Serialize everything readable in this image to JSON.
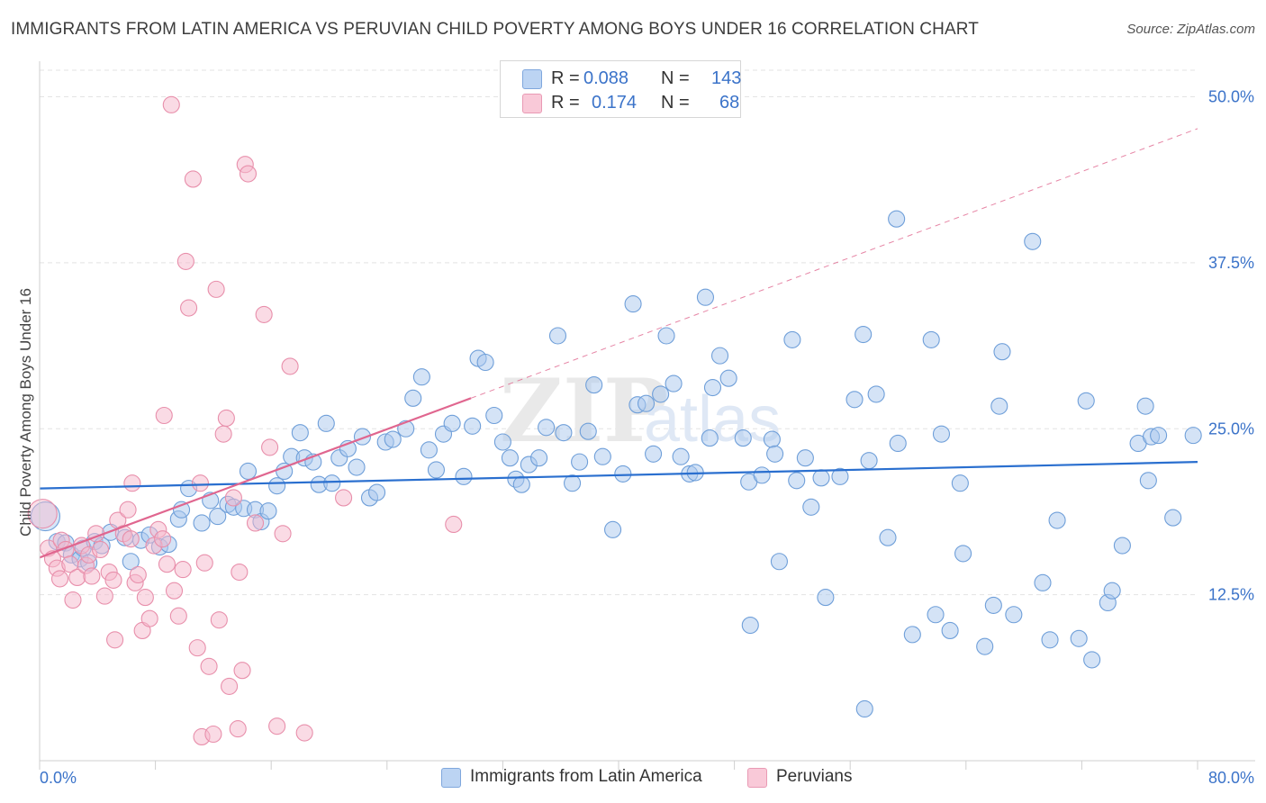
{
  "title": "IMMIGRANTS FROM LATIN AMERICA VS PERUVIAN CHILD POVERTY AMONG BOYS UNDER 16 CORRELATION CHART",
  "source": {
    "prefix": "Source: ",
    "name": "ZipAtlas.com"
  },
  "watermark": {
    "zip": "ZIP",
    "atlas": "atlas"
  },
  "colors": {
    "blue_fill": "#a9c8ee",
    "blue_stroke": "#6f9fd9",
    "blue_line": "#2a6fcf",
    "pink_fill": "#f6b8cc",
    "pink_stroke": "#e88fab",
    "pink_line": "#e0668f",
    "grid": "#e3e3e3",
    "axis_text": "#3b73c9"
  },
  "legend": {
    "rows": [
      {
        "r_label": "R =",
        "r_value": "0.088",
        "n_label": "N =",
        "n_value": "143"
      },
      {
        "r_label": "R =",
        "r_value": "0.174",
        "n_label": "N =",
        "n_value": "68"
      }
    ]
  },
  "chart_data": {
    "type": "scatter",
    "title": "IMMIGRANTS FROM LATIN AMERICA VS PERUVIAN CHILD POVERTY AMONG BOYS UNDER 16 CORRELATION CHART",
    "ylabel": "Child Poverty Among Boys Under 16",
    "xlabel": "",
    "xlim": [
      0,
      80
    ],
    "ylim": [
      0,
      52
    ],
    "x_tick_labels": [
      "0.0%",
      "80.0%"
    ],
    "y_ticks": [
      12.5,
      25.0,
      37.5,
      50.0
    ],
    "y_tick_labels": [
      "12.5%",
      "25.0%",
      "37.5%",
      "50.0%"
    ],
    "grid": true,
    "series": [
      {
        "name": "Immigrants from Latin America",
        "color": "blue",
        "trend": {
          "x": [
            0,
            80
          ],
          "y": [
            20.5,
            22.5
          ],
          "dashed": false
        },
        "points": [
          [
            0.4,
            18.4
          ],
          [
            1.2,
            16.5
          ],
          [
            1.8,
            16.4
          ],
          [
            2.2,
            15.5
          ],
          [
            2.8,
            15.2
          ],
          [
            3.0,
            16.0
          ],
          [
            3.4,
            14.9
          ],
          [
            3.8,
            16.5
          ],
          [
            4.3,
            16.2
          ],
          [
            4.9,
            17.2
          ],
          [
            5.9,
            16.8
          ],
          [
            6.3,
            15.0
          ],
          [
            7.0,
            16.6
          ],
          [
            7.6,
            17.0
          ],
          [
            8.3,
            16.1
          ],
          [
            8.9,
            16.3
          ],
          [
            9.6,
            18.2
          ],
          [
            9.8,
            18.9
          ],
          [
            10.3,
            20.5
          ],
          [
            11.2,
            17.9
          ],
          [
            11.8,
            19.6
          ],
          [
            12.3,
            18.4
          ],
          [
            13.0,
            19.3
          ],
          [
            13.4,
            19.1
          ],
          [
            14.1,
            19.0
          ],
          [
            14.4,
            21.8
          ],
          [
            14.9,
            18.9
          ],
          [
            15.3,
            18.0
          ],
          [
            15.8,
            18.8
          ],
          [
            16.4,
            20.7
          ],
          [
            16.9,
            21.8
          ],
          [
            17.4,
            22.9
          ],
          [
            18.0,
            24.7
          ],
          [
            18.3,
            22.8
          ],
          [
            18.9,
            22.5
          ],
          [
            19.3,
            20.8
          ],
          [
            19.8,
            25.4
          ],
          [
            20.2,
            20.9
          ],
          [
            20.7,
            22.8
          ],
          [
            21.3,
            23.5
          ],
          [
            21.9,
            22.1
          ],
          [
            22.3,
            24.4
          ],
          [
            22.8,
            19.8
          ],
          [
            23.3,
            20.2
          ],
          [
            23.9,
            24.0
          ],
          [
            24.4,
            24.2
          ],
          [
            25.3,
            25.0
          ],
          [
            25.8,
            27.3
          ],
          [
            26.4,
            28.9
          ],
          [
            26.9,
            23.4
          ],
          [
            27.4,
            21.9
          ],
          [
            27.9,
            24.6
          ],
          [
            28.5,
            25.4
          ],
          [
            29.3,
            21.4
          ],
          [
            29.9,
            25.2
          ],
          [
            30.3,
            30.3
          ],
          [
            30.8,
            30.0
          ],
          [
            31.4,
            26.0
          ],
          [
            32.0,
            24.0
          ],
          [
            32.5,
            22.8
          ],
          [
            32.9,
            21.2
          ],
          [
            33.3,
            20.8
          ],
          [
            33.8,
            22.3
          ],
          [
            34.5,
            22.8
          ],
          [
            35.0,
            25.1
          ],
          [
            35.8,
            32.0
          ],
          [
            36.2,
            24.7
          ],
          [
            36.8,
            20.9
          ],
          [
            37.3,
            22.5
          ],
          [
            37.9,
            24.8
          ],
          [
            38.3,
            28.3
          ],
          [
            38.9,
            22.9
          ],
          [
            39.6,
            17.4
          ],
          [
            40.3,
            21.6
          ],
          [
            41.0,
            34.4
          ],
          [
            41.3,
            26.8
          ],
          [
            41.9,
            26.9
          ],
          [
            42.4,
            23.1
          ],
          [
            42.9,
            27.6
          ],
          [
            43.3,
            32.0
          ],
          [
            43.8,
            28.4
          ],
          [
            44.3,
            22.9
          ],
          [
            44.9,
            21.6
          ],
          [
            45.3,
            21.7
          ],
          [
            46.0,
            34.9
          ],
          [
            46.3,
            24.3
          ],
          [
            46.5,
            28.1
          ],
          [
            47.0,
            30.5
          ],
          [
            47.6,
            28.8
          ],
          [
            48.6,
            24.3
          ],
          [
            49.0,
            21.0
          ],
          [
            49.1,
            10.2
          ],
          [
            49.9,
            21.5
          ],
          [
            50.6,
            24.2
          ],
          [
            50.8,
            23.1
          ],
          [
            51.1,
            15.0
          ],
          [
            52.0,
            31.7
          ],
          [
            52.3,
            21.1
          ],
          [
            52.9,
            22.8
          ],
          [
            53.3,
            19.1
          ],
          [
            54.0,
            21.3
          ],
          [
            54.3,
            12.3
          ],
          [
            55.3,
            21.4
          ],
          [
            56.3,
            27.2
          ],
          [
            56.9,
            32.1
          ],
          [
            57.0,
            3.9
          ],
          [
            57.3,
            22.6
          ],
          [
            57.8,
            27.6
          ],
          [
            58.6,
            16.8
          ],
          [
            59.2,
            40.8
          ],
          [
            59.3,
            23.9
          ],
          [
            60.3,
            9.5
          ],
          [
            61.6,
            31.7
          ],
          [
            61.9,
            11.0
          ],
          [
            62.3,
            24.6
          ],
          [
            62.9,
            9.8
          ],
          [
            63.6,
            20.9
          ],
          [
            63.8,
            15.6
          ],
          [
            65.3,
            8.6
          ],
          [
            65.9,
            11.7
          ],
          [
            66.3,
            26.7
          ],
          [
            66.5,
            30.8
          ],
          [
            67.3,
            11.0
          ],
          [
            68.6,
            39.1
          ],
          [
            69.3,
            13.4
          ],
          [
            69.8,
            9.1
          ],
          [
            70.3,
            18.1
          ],
          [
            71.8,
            9.2
          ],
          [
            72.3,
            27.1
          ],
          [
            72.7,
            7.6
          ],
          [
            73.8,
            11.9
          ],
          [
            74.1,
            12.8
          ],
          [
            74.8,
            16.2
          ],
          [
            75.9,
            23.9
          ],
          [
            76.4,
            26.7
          ],
          [
            76.6,
            21.1
          ],
          [
            76.8,
            24.4
          ],
          [
            77.3,
            24.5
          ],
          [
            78.3,
            18.3
          ],
          [
            79.7,
            24.5
          ]
        ]
      },
      {
        "name": "Peruvians",
        "color": "pink",
        "trend": {
          "x": [
            0,
            29.8
          ],
          "y": [
            15.3,
            27.3
          ],
          "dashed": false,
          "extension": {
            "x": [
              29.8,
              80
            ],
            "y": [
              27.3,
              47.6
            ]
          }
        },
        "points": [
          [
            0.2,
            18.6
          ],
          [
            0.6,
            16.0
          ],
          [
            0.9,
            15.2
          ],
          [
            1.2,
            14.5
          ],
          [
            1.4,
            13.7
          ],
          [
            1.5,
            16.6
          ],
          [
            1.8,
            15.9
          ],
          [
            2.1,
            14.8
          ],
          [
            2.3,
            12.1
          ],
          [
            2.6,
            13.8
          ],
          [
            2.9,
            16.2
          ],
          [
            3.2,
            14.7
          ],
          [
            3.4,
            15.5
          ],
          [
            3.6,
            13.9
          ],
          [
            3.9,
            17.1
          ],
          [
            4.2,
            15.9
          ],
          [
            4.5,
            12.4
          ],
          [
            4.8,
            14.2
          ],
          [
            5.1,
            13.6
          ],
          [
            5.2,
            9.1
          ],
          [
            5.4,
            18.1
          ],
          [
            5.8,
            17.1
          ],
          [
            6.1,
            18.9
          ],
          [
            6.3,
            16.7
          ],
          [
            6.4,
            20.9
          ],
          [
            6.6,
            13.4
          ],
          [
            6.8,
            14.0
          ],
          [
            7.1,
            9.8
          ],
          [
            7.3,
            12.3
          ],
          [
            7.6,
            10.7
          ],
          [
            7.9,
            16.2
          ],
          [
            8.2,
            17.4
          ],
          [
            8.5,
            16.7
          ],
          [
            8.6,
            26.0
          ],
          [
            8.8,
            14.8
          ],
          [
            9.1,
            49.4
          ],
          [
            9.3,
            12.8
          ],
          [
            9.6,
            10.9
          ],
          [
            9.9,
            14.4
          ],
          [
            10.1,
            37.6
          ],
          [
            10.3,
            34.1
          ],
          [
            10.6,
            43.8
          ],
          [
            10.9,
            8.5
          ],
          [
            11.1,
            20.9
          ],
          [
            11.2,
            1.8
          ],
          [
            11.4,
            14.9
          ],
          [
            11.7,
            7.1
          ],
          [
            12.0,
            2.0
          ],
          [
            12.2,
            35.5
          ],
          [
            12.4,
            10.6
          ],
          [
            12.7,
            24.6
          ],
          [
            12.9,
            25.8
          ],
          [
            13.1,
            5.6
          ],
          [
            13.4,
            19.8
          ],
          [
            13.7,
            2.4
          ],
          [
            14.0,
            6.8
          ],
          [
            14.2,
            44.9
          ],
          [
            14.4,
            44.2
          ],
          [
            14.9,
            17.9
          ],
          [
            15.5,
            33.6
          ],
          [
            15.9,
            23.6
          ],
          [
            16.4,
            2.6
          ],
          [
            16.8,
            17.1
          ],
          [
            17.3,
            29.7
          ],
          [
            13.8,
            14.2
          ],
          [
            18.3,
            2.1
          ],
          [
            21.0,
            19.8
          ],
          [
            28.6,
            17.8
          ]
        ]
      }
    ]
  },
  "axes": {
    "x_left_label": "0.0%",
    "x_right_label": "80.0%",
    "y_label": "Child Poverty Among Boys Under 16"
  },
  "bottom_legend": {
    "blue_label": "Immigrants from Latin America",
    "pink_label": "Peruvians"
  }
}
